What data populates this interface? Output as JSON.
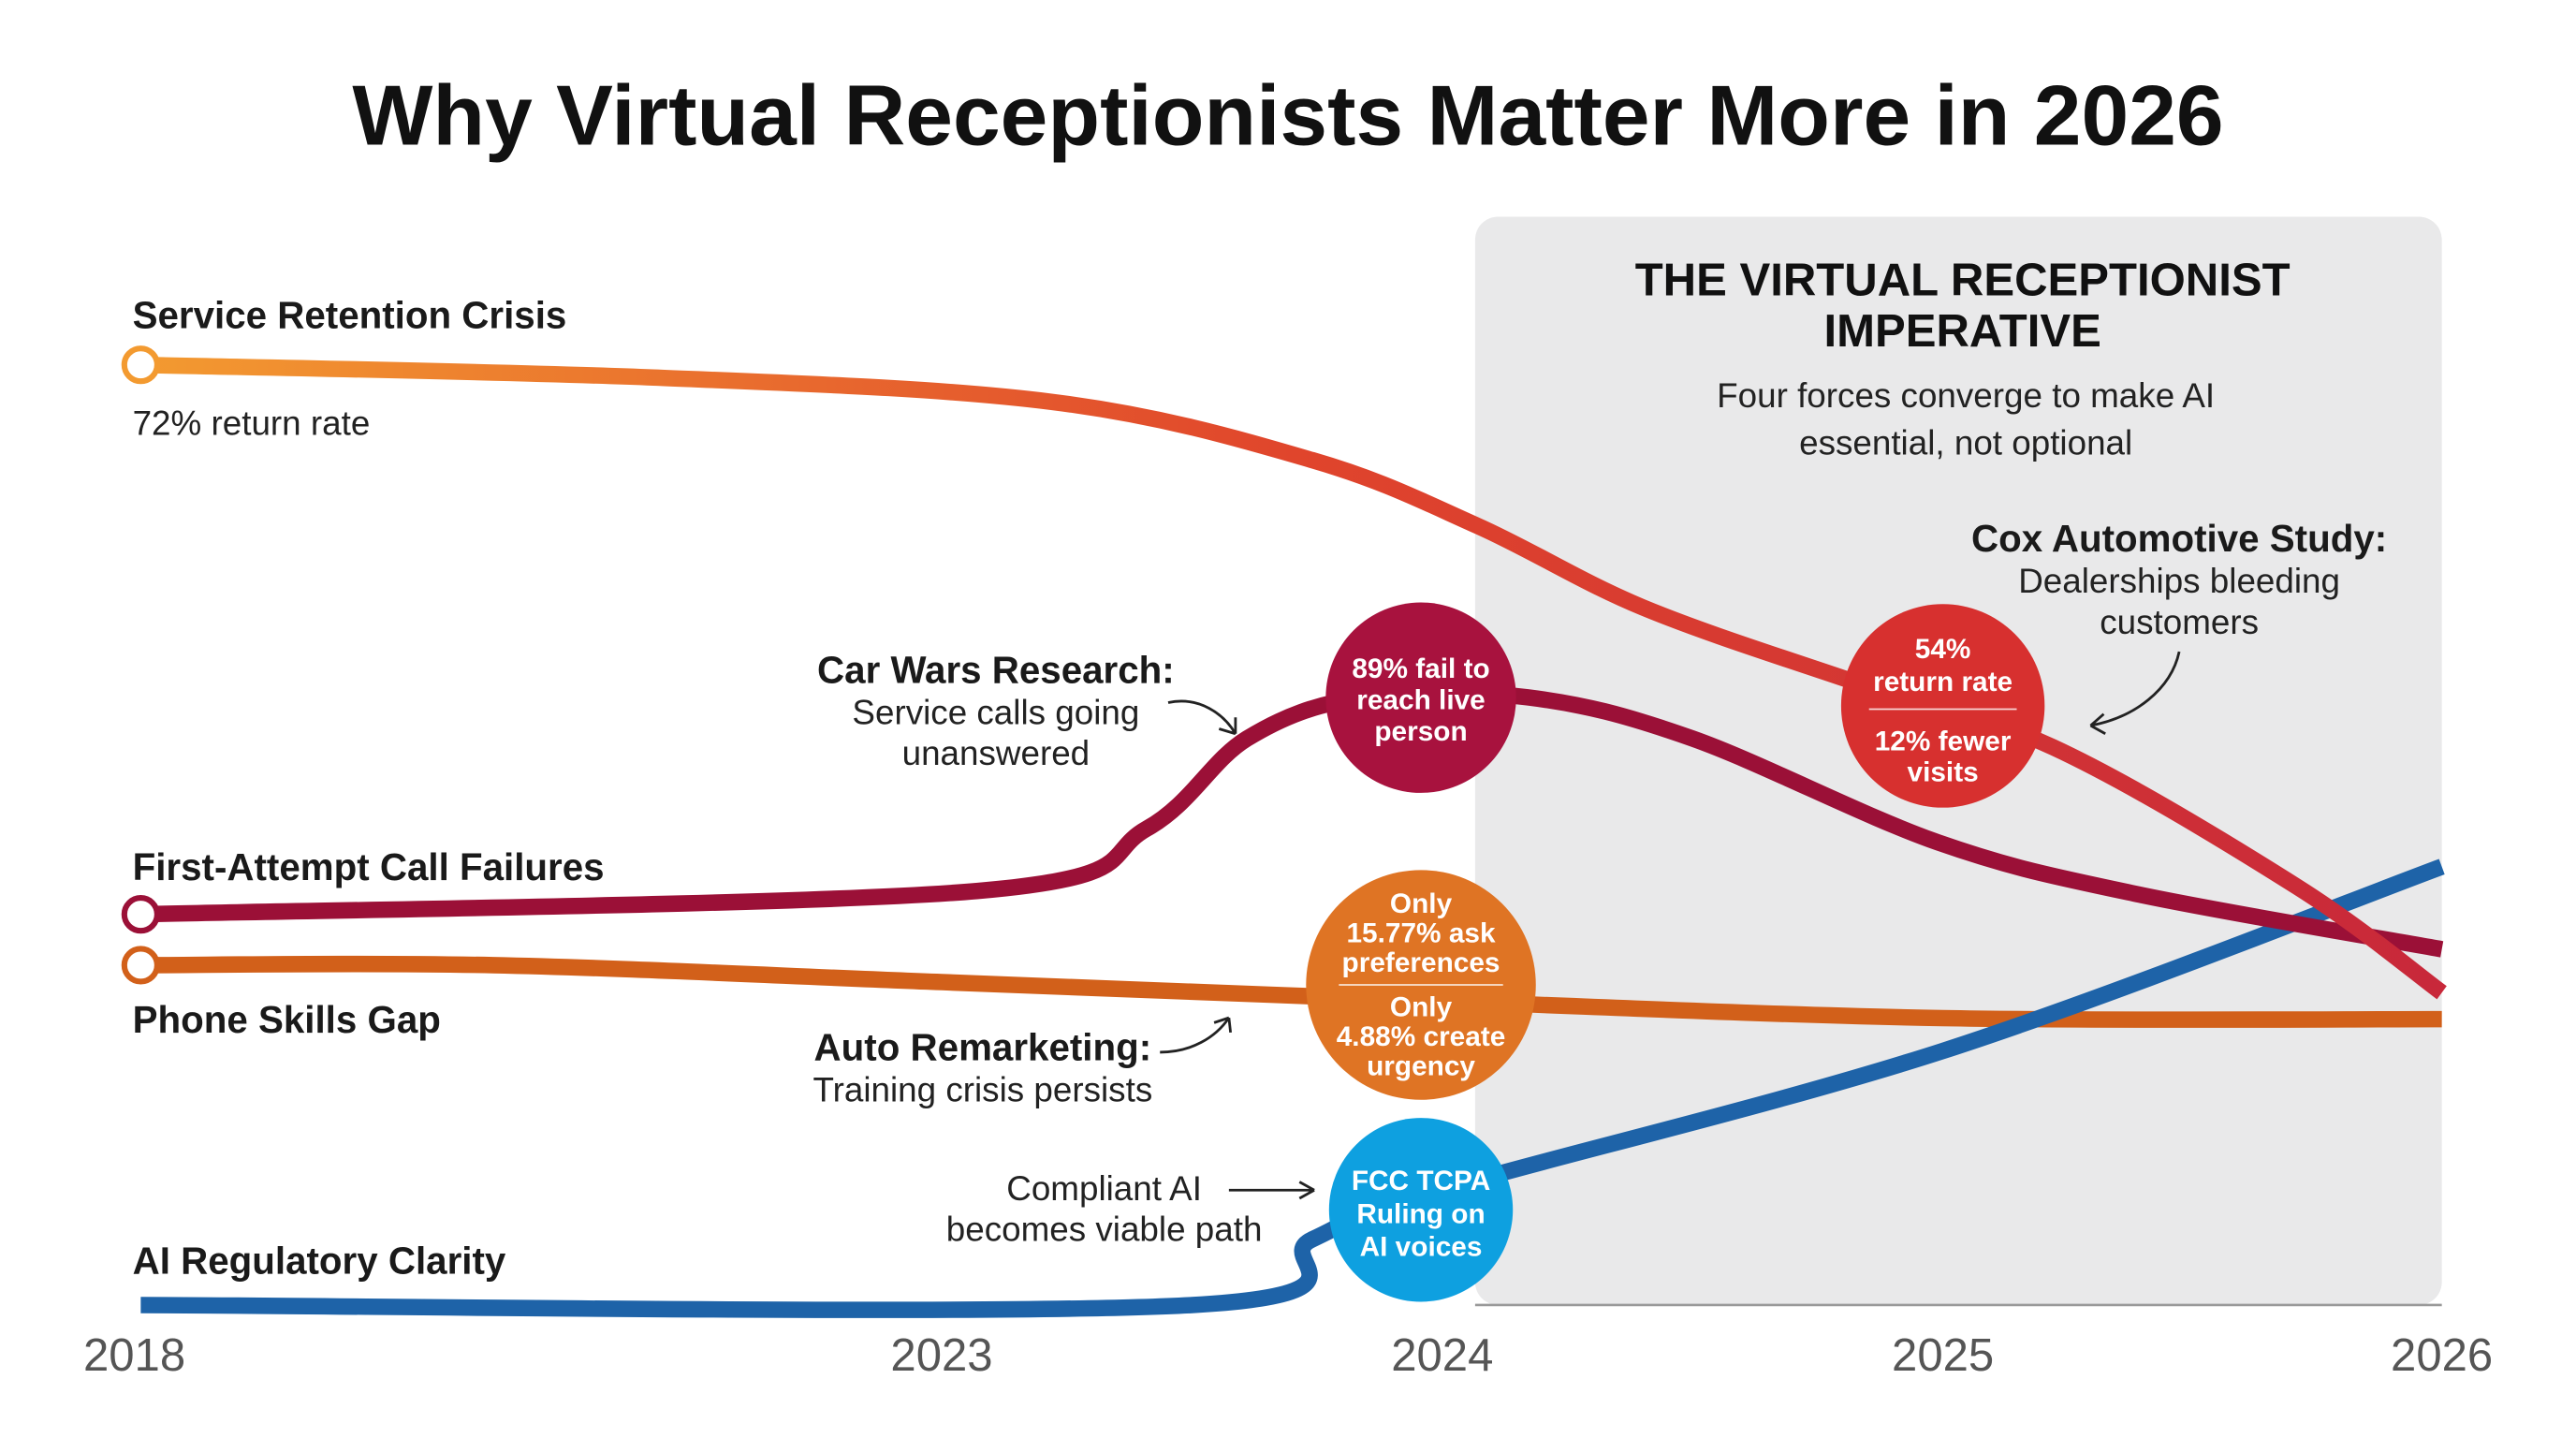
{
  "chart_data": {
    "type": "line",
    "title": "Why Virtual Receptionists Matter More in 2026",
    "xlabel": "",
    "ylabel": "",
    "x_ticks": [
      "2018",
      "2023",
      "2024",
      "2025",
      "2026"
    ],
    "grid": false,
    "y_axis_shown": false,
    "series": [
      {
        "name": "Service Retention Crisis",
        "sublabel": "72% return rate",
        "color": "#e0452c",
        "color_start": "#f39a30",
        "x": [
          2018,
          2021.2,
          2023.22,
          2023.74,
          2024.07,
          2024.4,
          2024.82,
          2025.22,
          2025.71,
          2026
        ],
        "y": [
          88.8,
          87.6,
          85.3,
          79.8,
          73.6,
          65.9,
          58.9,
          52.7,
          39.5,
          29.5
        ]
      },
      {
        "name": "First-Attempt Call Failures",
        "color": "#9b1037",
        "x": [
          2018,
          2023.07,
          2023.41,
          2023.61,
          2023.84,
          2024.17,
          2024.5,
          2024.99,
          2025.39,
          2026
        ],
        "y": [
          36.9,
          39.1,
          45,
          53.5,
          57.4,
          57.4,
          53.5,
          43.7,
          38.8,
          33.6
        ]
      },
      {
        "name": "Phone Skills Gap",
        "color": "#d2601a",
        "x": [
          2018,
          2020.2,
          2023,
          2024,
          2025,
          2026
        ],
        "y": [
          32.1,
          32.1,
          30.5,
          28.7,
          27.1,
          27
        ]
      },
      {
        "name": "AI Regulatory Clarity",
        "color": "#1e63a8",
        "x": [
          2018,
          2023.5,
          2023.74,
          2024,
          2025,
          2026
        ],
        "y": [
          0,
          0,
          6.2,
          10.9,
          24,
          41.4
        ]
      }
    ],
    "highlight_region": {
      "from": 2024,
      "to": 2026,
      "title_lines": [
        "THE VIRTUAL RECEPTIONIST",
        "IMPERATIVE"
      ],
      "subtitle_lines": [
        "Four forces converge to make AI",
        "essential, not optional"
      ]
    },
    "bubbles": [
      {
        "lines": [
          "89% fail to",
          "reach live",
          "person"
        ],
        "color": "#a8123e"
      },
      {
        "lines": [
          "54%",
          "return rate"
        ],
        "lines2": [
          "12% fewer",
          "visits"
        ],
        "color": "#d7302f"
      },
      {
        "lines": [
          "Only",
          "15.77% ask",
          "preferences"
        ],
        "lines2": [
          "Only",
          "4.88% create",
          "urgency"
        ],
        "color": "#df7424"
      },
      {
        "lines": [
          "FCC TCPA",
          "Ruling on",
          "AI voices"
        ],
        "color": "#0ea0e0"
      }
    ],
    "annotations": [
      {
        "head": "Car Wars Research:",
        "lines": [
          "Service calls going",
          "unanswered"
        ]
      },
      {
        "head": "Cox Automotive Study:",
        "lines": [
          "Dealerships bleeding",
          "customers"
        ]
      },
      {
        "head": "Auto Remarketing:",
        "lines": [
          "Training crisis persists"
        ]
      },
      {
        "head": "",
        "lines": [
          "Compliant AI",
          "becomes viable path"
        ]
      }
    ]
  }
}
